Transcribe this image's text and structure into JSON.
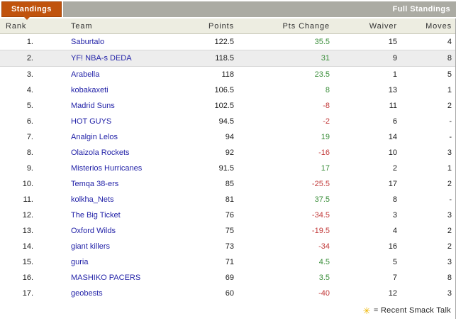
{
  "header": {
    "standings_tab": "Standings",
    "full_standings_link": "Full Standings"
  },
  "table": {
    "columns": {
      "rank": "Rank",
      "team": "Team",
      "points": "Points",
      "pts_change": "Pts Change",
      "waiver": "Waiver",
      "moves": "Moves"
    },
    "rows": [
      {
        "rank": "1.",
        "team": "Saburtalo",
        "points": "122.5",
        "pts_change": "35.5",
        "waiver": "15",
        "moves": "4",
        "highlight": false
      },
      {
        "rank": "2.",
        "team": "YF! NBA-s DEDA",
        "points": "118.5",
        "pts_change": "31",
        "waiver": "9",
        "moves": "8",
        "highlight": true
      },
      {
        "rank": "3.",
        "team": "Arabella",
        "points": "118",
        "pts_change": "23.5",
        "waiver": "1",
        "moves": "5",
        "highlight": false
      },
      {
        "rank": "4.",
        "team": "kobakaxeti",
        "points": "106.5",
        "pts_change": "8",
        "waiver": "13",
        "moves": "1",
        "highlight": false
      },
      {
        "rank": "5.",
        "team": "Madrid Suns",
        "points": "102.5",
        "pts_change": "-8",
        "waiver": "11",
        "moves": "2",
        "highlight": false
      },
      {
        "rank": "6.",
        "team": "HOT GUYS",
        "points": "94.5",
        "pts_change": "-2",
        "waiver": "6",
        "moves": "-",
        "highlight": false
      },
      {
        "rank": "7.",
        "team": "Analgin Lelos",
        "points": "94",
        "pts_change": "19",
        "waiver": "14",
        "moves": "-",
        "highlight": false
      },
      {
        "rank": "8.",
        "team": "Olaizola Rockets",
        "points": "92",
        "pts_change": "-16",
        "waiver": "10",
        "moves": "3",
        "highlight": false
      },
      {
        "rank": "9.",
        "team": "Misterios Hurricanes",
        "points": "91.5",
        "pts_change": "17",
        "waiver": "2",
        "moves": "1",
        "highlight": false
      },
      {
        "rank": "10.",
        "team": "Temqa 38-ers",
        "points": "85",
        "pts_change": "-25.5",
        "waiver": "17",
        "moves": "2",
        "highlight": false
      },
      {
        "rank": "11.",
        "team": "kolkha_Nets",
        "points": "81",
        "pts_change": "37.5",
        "waiver": "8",
        "moves": "-",
        "highlight": false
      },
      {
        "rank": "12.",
        "team": "The Big Ticket",
        "points": "76",
        "pts_change": "-34.5",
        "waiver": "3",
        "moves": "3",
        "highlight": false
      },
      {
        "rank": "13.",
        "team": "Oxford Wilds",
        "points": "75",
        "pts_change": "-19.5",
        "waiver": "4",
        "moves": "2",
        "highlight": false
      },
      {
        "rank": "14.",
        "team": "giant killers",
        "points": "73",
        "pts_change": "-34",
        "waiver": "16",
        "moves": "2",
        "highlight": false
      },
      {
        "rank": "15.",
        "team": "guria",
        "points": "71",
        "pts_change": "4.5",
        "waiver": "5",
        "moves": "3",
        "highlight": false
      },
      {
        "rank": "16.",
        "team": "MASHIKO PACERS",
        "points": "69",
        "pts_change": "3.5",
        "waiver": "7",
        "moves": "8",
        "highlight": false
      },
      {
        "rank": "17.",
        "team": "geobests",
        "points": "60",
        "pts_change": "-40",
        "waiver": "12",
        "moves": "3",
        "highlight": false
      }
    ]
  },
  "footer": {
    "smack_icon_glyph": "✳",
    "smack_talk_legend": "= Recent Smack Talk"
  },
  "colors": {
    "tab_orange": "#C0530D",
    "bar_gray": "#ABABA3",
    "header_beige": "#EDEDE1",
    "team_link_blue": "#2323A8",
    "positive_green": "#3A8E3A",
    "negative_red": "#C23A3A",
    "highlight_row": "#EDEDED",
    "smack_icon_gold": "#EDB500"
  }
}
